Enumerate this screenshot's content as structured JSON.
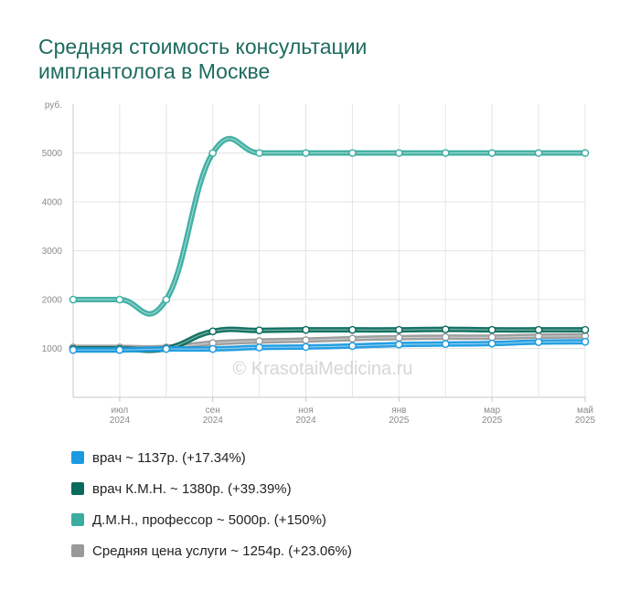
{
  "title_lines": [
    "Средняя стоимость консультации",
    "имплантолога в Москве"
  ],
  "watermark": "© KrasotaiMedicina.ru",
  "chart_data": {
    "type": "line",
    "title": "Средняя стоимость консультации имплантолога в Москве",
    "ylabel": "руб.",
    "ylim": [
      0,
      6000
    ],
    "yticks": [
      1000,
      2000,
      3000,
      4000,
      5000
    ],
    "x": [
      "2024-05",
      "2024-07",
      "2024-08",
      "2024-09",
      "2024-10",
      "2024-11",
      "2024-12",
      "2025-01",
      "2025-02",
      "2025-03",
      "2025-04",
      "2025-05"
    ],
    "xticks": [
      {
        "month": "июл",
        "year": "2024",
        "index": 1
      },
      {
        "month": "сен",
        "year": "2024",
        "index": 3
      },
      {
        "month": "ноя",
        "year": "2024",
        "index": 5
      },
      {
        "month": "янв",
        "year": "2025",
        "index": 7
      },
      {
        "month": "мар",
        "year": "2025",
        "index": 9
      },
      {
        "month": "май",
        "year": "2025",
        "index": 11
      }
    ],
    "grid": true,
    "legend_position": "bottom",
    "series": [
      {
        "name": "Д.М.Н., профессор",
        "color": "#3aada0",
        "values": [
          2000,
          2000,
          2000,
          5000,
          5000,
          5000,
          5000,
          5000,
          5000,
          5000,
          5000,
          5000
        ]
      },
      {
        "name": "Средняя цена услуги",
        "color": "#9a9a9a",
        "values": [
          1020,
          1020,
          1020,
          1110,
          1150,
          1170,
          1200,
          1220,
          1230,
          1230,
          1250,
          1254
        ]
      },
      {
        "name": "врач К.М.Н.",
        "color": "#0a6b5c",
        "values": [
          990,
          990,
          1000,
          1350,
          1370,
          1380,
          1380,
          1380,
          1390,
          1380,
          1380,
          1380
        ]
      },
      {
        "name": "врач",
        "color": "#1a9ae0",
        "values": [
          969,
          969,
          990,
          990,
          1020,
          1030,
          1050,
          1080,
          1090,
          1100,
          1130,
          1137
        ]
      }
    ]
  },
  "legend": [
    {
      "color": "#1a9ae0",
      "label": "врач ~ 1137р. (+17.34%)"
    },
    {
      "color": "#0a6b5c",
      "label": "врач К.М.Н. ~ 1380р. (+39.39%)"
    },
    {
      "color": "#3aada0",
      "label": "Д.М.Н., профессор ~ 5000р. (+150%)"
    },
    {
      "color": "#9a9a9a",
      "label": "Средняя цена услуги ~ 1254р. (+23.06%)"
    }
  ]
}
